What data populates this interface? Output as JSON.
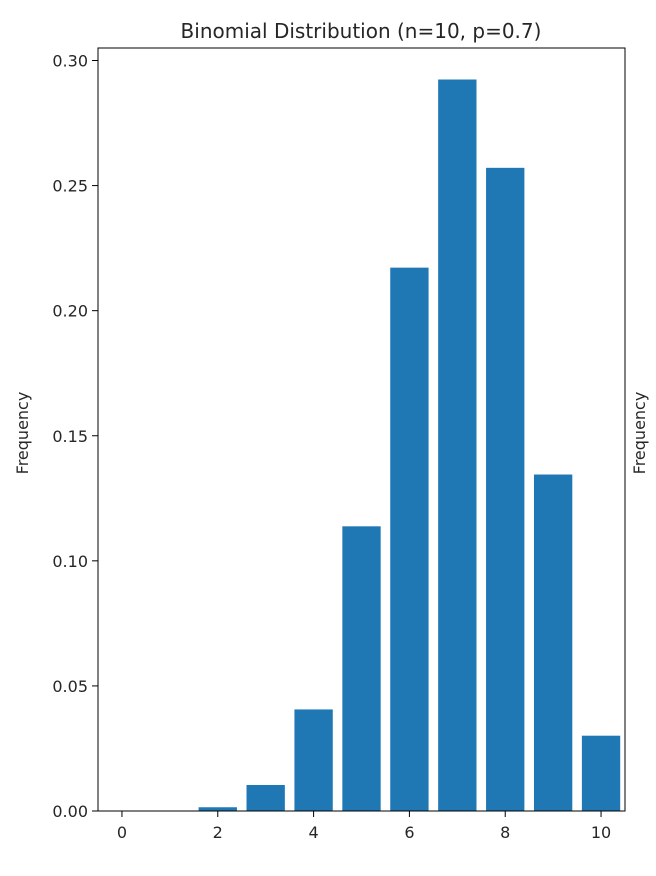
{
  "chart_data": {
    "type": "bar",
    "title": "Binomial Distribution (n=10, p=0.7)",
    "xlabel": "",
    "ylabel": "Frequency",
    "right_ylabel": "Frequency",
    "x": [
      0,
      1,
      2,
      3,
      4,
      5,
      6,
      7,
      8,
      9,
      10
    ],
    "values": [
      0.0,
      0.0,
      0.0015,
      0.0104,
      0.0406,
      0.1138,
      0.2172,
      0.2924,
      0.2571,
      0.1345,
      0.0301
    ],
    "xlim": [
      -0.5,
      10.5
    ],
    "ylim": [
      0,
      0.305
    ],
    "xticks": [
      "0",
      "2",
      "4",
      "6",
      "8",
      "10"
    ],
    "yticks": [
      "0.00",
      "0.05",
      "0.10",
      "0.15",
      "0.20",
      "0.25",
      "0.30"
    ],
    "bar_color": "#1f77b4",
    "grid": false,
    "legend": "none"
  }
}
